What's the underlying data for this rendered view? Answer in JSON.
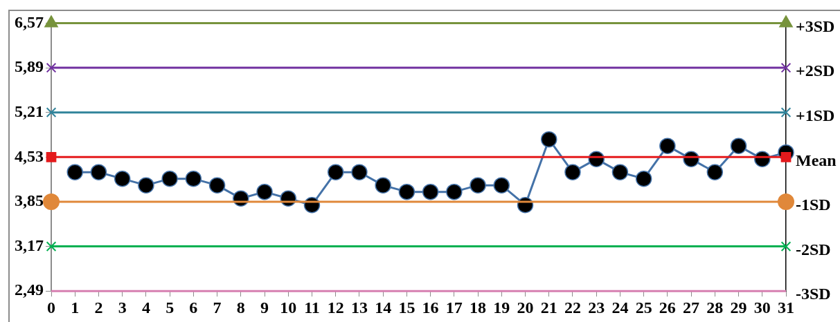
{
  "chart_data": {
    "type": "line",
    "xlim": [
      0,
      31
    ],
    "xticks": [
      0,
      1,
      2,
      3,
      4,
      5,
      6,
      7,
      8,
      9,
      10,
      11,
      12,
      13,
      14,
      15,
      16,
      17,
      18,
      19,
      20,
      21,
      22,
      23,
      24,
      25,
      26,
      27,
      28,
      29,
      30,
      31
    ],
    "ylim": [
      2.49,
      6.57
    ],
    "yticks": [
      {
        "value": 2.49,
        "label": "2,49"
      },
      {
        "value": 3.17,
        "label": "3,17"
      },
      {
        "value": 3.85,
        "label": "3,85"
      },
      {
        "value": 4.53,
        "label": "4,53"
      },
      {
        "value": 5.21,
        "label": "5,21"
      },
      {
        "value": 5.89,
        "label": "5,89"
      },
      {
        "value": 6.57,
        "label": "6,57"
      }
    ],
    "grid": false,
    "legend": false,
    "series": [
      {
        "color": "#4472a8",
        "marker": "circle",
        "x": [
          1,
          2,
          3,
          4,
          5,
          6,
          7,
          8,
          9,
          10,
          11,
          12,
          13,
          14,
          15,
          16,
          17,
          18,
          19,
          20,
          21,
          22,
          23,
          24,
          25,
          26,
          27,
          28,
          29,
          30,
          31
        ],
        "values": [
          4.3,
          4.3,
          4.2,
          4.1,
          4.2,
          4.2,
          4.1,
          3.9,
          4.0,
          3.9,
          3.8,
          4.3,
          4.3,
          4.1,
          4.0,
          4.0,
          4.0,
          4.1,
          4.1,
          3.8,
          4.8,
          4.3,
          4.5,
          4.3,
          4.2,
          4.7,
          4.5,
          4.3,
          4.7,
          4.5,
          4.6
        ]
      },
      {
        "name": "+3SD",
        "color": "#77933c",
        "marker": "triangle",
        "x": [
          0,
          31
        ],
        "values": [
          6.57,
          6.57
        ]
      },
      {
        "name": "+2SD",
        "color": "#7030a0",
        "marker": "cross",
        "x": [
          0,
          31
        ],
        "values": [
          5.89,
          5.89
        ]
      },
      {
        "name": "+1SD",
        "color": "#31849b",
        "marker": "cross",
        "x": [
          0,
          31
        ],
        "values": [
          5.21,
          5.21
        ]
      },
      {
        "name": "Mean",
        "color": "#e41a1c",
        "marker": "square",
        "x": [
          0,
          31
        ],
        "values": [
          4.53,
          4.53
        ]
      },
      {
        "name": "-1SD",
        "color": "#e0883a",
        "marker": "circle",
        "x": [
          0,
          31
        ],
        "values": [
          3.85,
          3.85
        ]
      },
      {
        "name": "-2SD",
        "color": "#00b050",
        "marker": "cross",
        "x": [
          0,
          31
        ],
        "values": [
          3.17,
          3.17
        ]
      },
      {
        "name": "-3SD",
        "color": "#d67fb0",
        "marker": "none",
        "x": [
          0,
          31
        ],
        "values": [
          2.49,
          2.49
        ]
      }
    ]
  }
}
